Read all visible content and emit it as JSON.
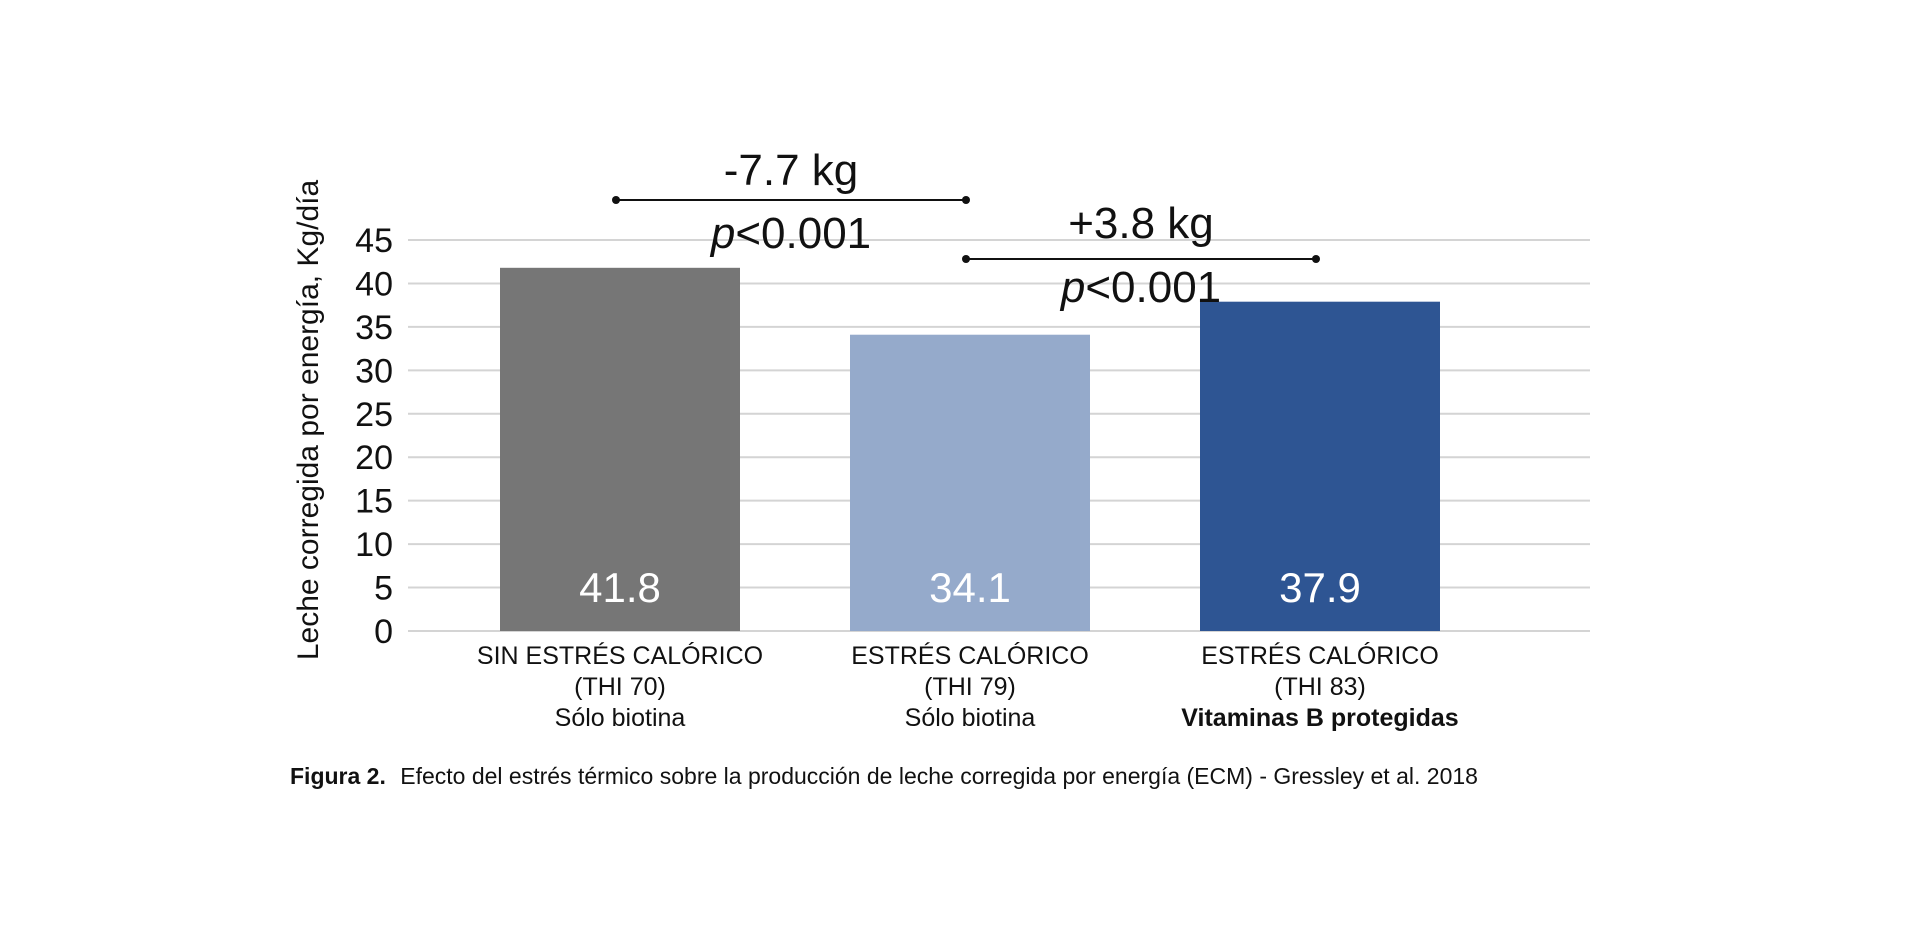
{
  "chart_data": {
    "type": "bar",
    "title": "",
    "ylabel": "Leche corregida por energía, Kg/día",
    "xlabel": "",
    "ylim": [
      0,
      45
    ],
    "yticks": [
      "0",
      "5",
      "10",
      "15",
      "20",
      "25",
      "30",
      "35",
      "40",
      "45"
    ],
    "grid": true,
    "categories": [
      {
        "lines": [
          "SIN ESTRÉS CALÓRICO",
          "(THI 70)",
          "Sólo biotina"
        ],
        "bold_last": false
      },
      {
        "lines": [
          "ESTRÉS CALÓRICO",
          "(THI 79)",
          "Sólo biotina"
        ],
        "bold_last": false
      },
      {
        "lines": [
          "ESTRÉS CALÓRICO",
          "(THI 83)",
          "Vitaminas B protegidas"
        ],
        "bold_last": true
      }
    ],
    "values": [
      41.8,
      34.1,
      37.9
    ],
    "value_labels": [
      "41.8",
      "34.1",
      "37.9"
    ],
    "colors": [
      "#767676",
      "#95aacb",
      "#2e5593"
    ],
    "annotations": [
      {
        "from": 0,
        "to": 1,
        "delta": "-7.7 kg",
        "p_symbol": "p",
        "p_rest": "<0.001"
      },
      {
        "from": 1,
        "to": 2,
        "delta": "+3.8 kg",
        "p_symbol": "p",
        "p_rest": "<0.001"
      }
    ]
  },
  "caption": {
    "label": "Figura 2.",
    "text": "Efecto del estrés térmico sobre la producción de leche corregida por energía (ECM) - Gressley et al. 2018"
  }
}
